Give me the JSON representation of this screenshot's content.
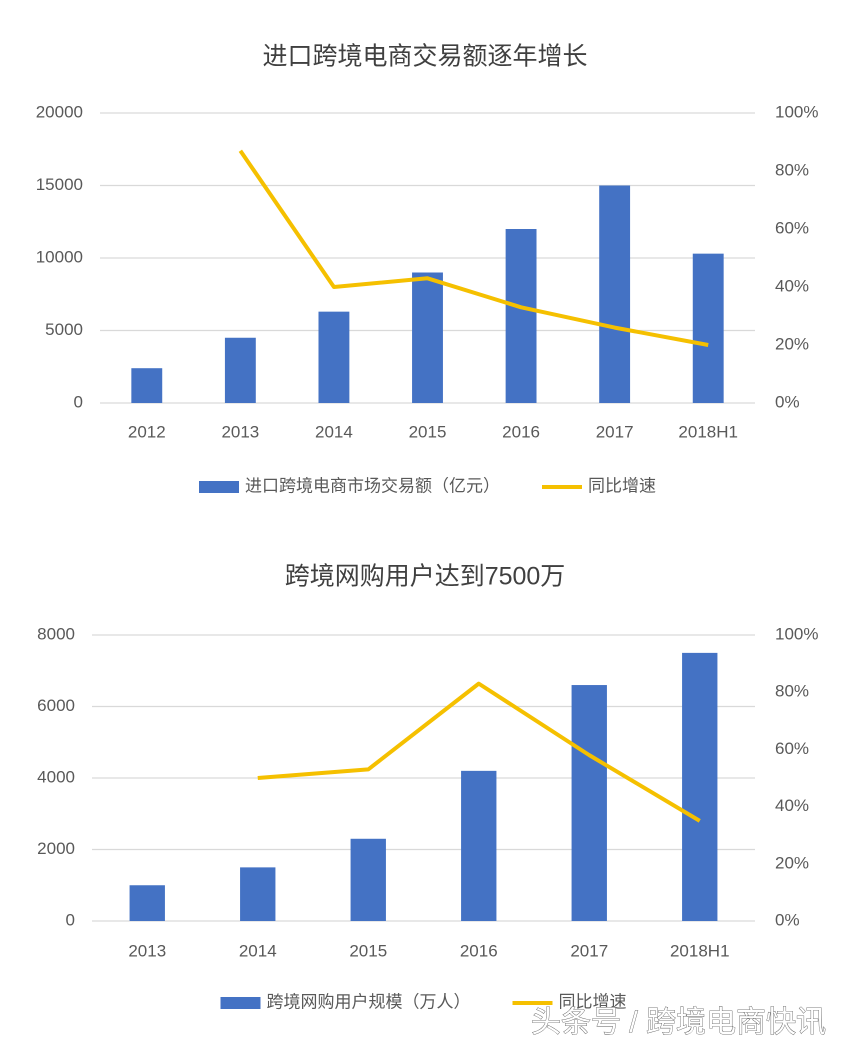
{
  "chart_data": [
    {
      "type": "bar_line",
      "title": "进口跨境电商交易额逐年增长",
      "categories": [
        "2012",
        "2013",
        "2014",
        "2015",
        "2016",
        "2017",
        "2018H1"
      ],
      "series": [
        {
          "name": "进口跨境电商市场交易额（亿元）",
          "type": "bar",
          "color": "#4472c4",
          "values": [
            2400,
            4500,
            6300,
            9000,
            12000,
            15000,
            10300
          ]
        },
        {
          "name": "同比增速",
          "type": "line",
          "axis": "y2",
          "color": "#f5c000",
          "values": [
            null,
            87,
            40,
            43,
            33,
            26,
            20
          ]
        }
      ],
      "ylim": [
        0,
        20000
      ],
      "yticks": [
        0,
        5000,
        10000,
        15000,
        20000
      ],
      "y2lim": [
        0,
        100
      ],
      "y2ticks": [
        {
          "value": 0,
          "label": "0%"
        },
        {
          "value": 20,
          "label": "20%"
        },
        {
          "value": 40,
          "label": "40%"
        },
        {
          "value": 60,
          "label": "60%"
        },
        {
          "value": 80,
          "label": "80%"
        },
        {
          "value": 100,
          "label": "100%"
        }
      ],
      "grid": true,
      "legend": "bottom"
    },
    {
      "type": "bar_line",
      "title": "跨境网购用户达到7500万",
      "categories": [
        "2013",
        "2014",
        "2015",
        "2016",
        "2017",
        "2018H1"
      ],
      "series": [
        {
          "name": "跨境网购用户规模（万人）",
          "type": "bar",
          "color": "#4472c4",
          "values": [
            1000,
            1500,
            2300,
            4200,
            6600,
            7500
          ]
        },
        {
          "name": "同比增速",
          "type": "line",
          "axis": "y2",
          "color": "#f5c000",
          "values": [
            null,
            50,
            53,
            83,
            58,
            35
          ]
        }
      ],
      "ylim": [
        0,
        8000
      ],
      "yticks": [
        0,
        2000,
        4000,
        6000,
        8000
      ],
      "y2lim": [
        0,
        100
      ],
      "y2ticks": [
        {
          "value": 0,
          "label": "0%"
        },
        {
          "value": 20,
          "label": "20%"
        },
        {
          "value": 40,
          "label": "40%"
        },
        {
          "value": 60,
          "label": "60%"
        },
        {
          "value": 80,
          "label": "80%"
        },
        {
          "value": 100,
          "label": "100%"
        }
      ],
      "grid": true,
      "legend": "bottom"
    }
  ],
  "watermark": "头条号 / 跨境电商快讯"
}
